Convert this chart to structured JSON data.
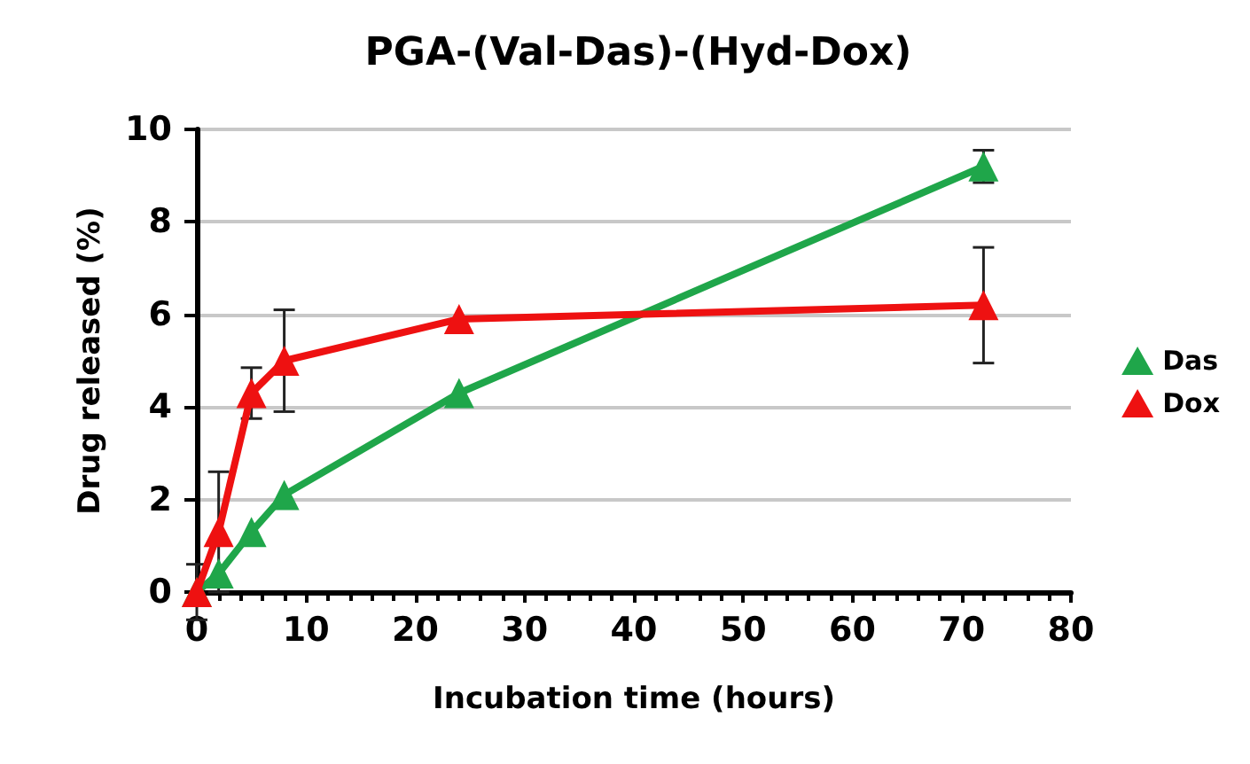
{
  "chart_data": {
    "type": "line",
    "title": "PGA-(Val-Das)-(Hyd-Dox)",
    "xlabel": "Incubation time (hours)",
    "ylabel": "Drug released (%)",
    "x": [
      0,
      2,
      5,
      8,
      24,
      72
    ],
    "series": [
      {
        "name": "Das",
        "color": "#1fa64a",
        "values": [
          0,
          0.4,
          1.3,
          2.1,
          4.3,
          9.2
        ],
        "errors": [
          null,
          null,
          null,
          null,
          null,
          0.35
        ]
      },
      {
        "name": "Dox",
        "color": "#ee1111",
        "values": [
          0,
          1.3,
          4.3,
          5.0,
          5.9,
          6.2
        ],
        "errors": [
          0.6,
          1.3,
          0.55,
          1.1,
          null,
          1.25
        ]
      }
    ],
    "xlim": [
      0,
      80
    ],
    "xticks": [
      0,
      10,
      20,
      30,
      40,
      50,
      60,
      70,
      80
    ],
    "ylim": [
      0,
      10
    ],
    "yticks": [
      0,
      2,
      4,
      6,
      8,
      10
    ],
    "grid": "y",
    "legend": "right",
    "marker": "triangle",
    "line_style": "solid"
  }
}
